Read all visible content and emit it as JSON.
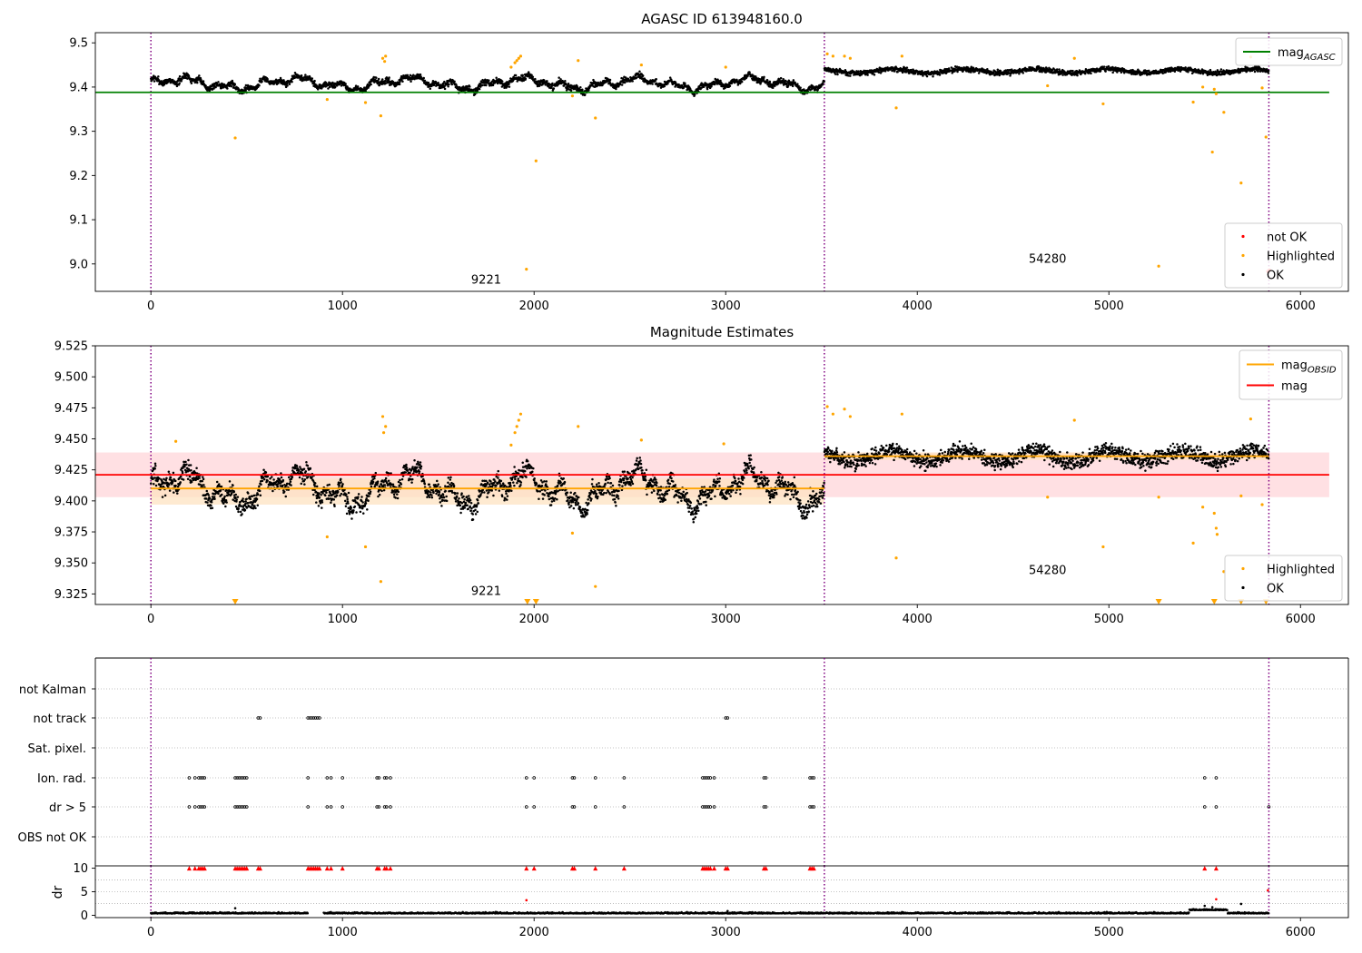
{
  "colors": {
    "ok": "#000000",
    "highlighted": "#ffa500",
    "not_ok": "#ff0000",
    "mag_agasc": "#008000",
    "mag_obsid": "#ffa500",
    "mag": "#ff0000",
    "obs_boundary": "#800080",
    "red_band": "#ffd8dc",
    "orange_band": "#fde3c2"
  },
  "chart_data": [
    {
      "type": "scatter",
      "title": "AGASC ID 613948160.0",
      "xlabel": "",
      "ylabel": "",
      "xlim": [
        -290,
        6250
      ],
      "ylim": [
        8.938,
        9.523
      ],
      "x_ticks": [
        0,
        1000,
        2000,
        3000,
        4000,
        5000,
        6000
      ],
      "y_ticks": [
        9.0,
        9.1,
        9.2,
        9.3,
        9.4,
        9.5
      ],
      "y_tick_labels": [
        "9.0",
        "9.1",
        "9.2",
        "9.3",
        "9.4",
        "9.5"
      ],
      "obs_boundaries": [
        0,
        3515,
        5835
      ],
      "obsid_labels": [
        {
          "text": "9221",
          "x": 1750,
          "y": 8.955
        },
        {
          "text": "54280",
          "x": 4680,
          "y": 9.003
        }
      ],
      "segments": [
        {
          "x_start": 0,
          "x_end": 3515,
          "mag": 9.408,
          "spread": 0.012
        },
        {
          "x_start": 3515,
          "x_end": 5835,
          "mag": 9.436,
          "spread": 0.01
        }
      ],
      "hlines": [
        {
          "name": "mag_AGASC",
          "y": 9.388,
          "x_start": -290,
          "x_end": 6150,
          "color": "#008000"
        }
      ],
      "highlighted": [
        [
          440,
          9.285
        ],
        [
          920,
          9.372
        ],
        [
          1120,
          9.365
        ],
        [
          1200,
          9.335
        ],
        [
          1210,
          9.465
        ],
        [
          1220,
          9.458
        ],
        [
          1225,
          9.47
        ],
        [
          1880,
          9.445
        ],
        [
          1900,
          9.455
        ],
        [
          1910,
          9.46
        ],
        [
          1920,
          9.465
        ],
        [
          1930,
          9.47
        ],
        [
          1960,
          8.988
        ],
        [
          2010,
          9.233
        ],
        [
          2200,
          9.38
        ],
        [
          2230,
          9.46
        ],
        [
          2320,
          9.33
        ],
        [
          2560,
          9.45
        ],
        [
          3000,
          9.445
        ],
        [
          3530,
          9.475
        ],
        [
          3560,
          9.47
        ],
        [
          3620,
          9.47
        ],
        [
          3650,
          9.465
        ],
        [
          3890,
          9.353
        ],
        [
          3920,
          9.47
        ],
        [
          4680,
          9.403
        ],
        [
          4820,
          9.465
        ],
        [
          4970,
          9.362
        ],
        [
          5260,
          8.995
        ],
        [
          5440,
          9.366
        ],
        [
          5490,
          9.4
        ],
        [
          5540,
          9.253
        ],
        [
          5550,
          9.395
        ],
        [
          5560,
          9.385
        ],
        [
          5600,
          9.343
        ],
        [
          5690,
          9.183
        ],
        [
          5740,
          9.468
        ],
        [
          5800,
          9.398
        ],
        [
          5820,
          9.287
        ]
      ],
      "not_ok": [
        [
          5830,
          8.983
        ],
        [
          5838,
          8.986
        ]
      ],
      "legends": [
        {
          "placement": "upper right",
          "entries": [
            {
              "label": "mag_AGASC",
              "type": "line",
              "color": "#008000"
            }
          ]
        },
        {
          "placement": "lower right",
          "entries": [
            {
              "label": "not OK",
              "type": "dot",
              "color": "#ff0000"
            },
            {
              "label": "Highlighted",
              "type": "dot",
              "color": "#ffa500"
            },
            {
              "label": "OK",
              "type": "dot",
              "color": "#000000"
            }
          ]
        }
      ]
    },
    {
      "type": "scatter",
      "title": "Magnitude Estimates",
      "xlabel": "",
      "ylabel": "",
      "xlim": [
        -290,
        6250
      ],
      "ylim": [
        9.3165,
        9.525
      ],
      "x_ticks": [
        0,
        1000,
        2000,
        3000,
        4000,
        5000,
        6000
      ],
      "y_ticks": [
        9.325,
        9.35,
        9.375,
        9.4,
        9.425,
        9.45,
        9.475,
        9.5,
        9.525
      ],
      "y_tick_labels": [
        "9.325",
        "9.350",
        "9.375",
        "9.400",
        "9.425",
        "9.450",
        "9.475",
        "9.500",
        "9.525"
      ],
      "obs_boundaries": [
        0,
        3515,
        5835
      ],
      "obsid_labels": [
        {
          "text": "9221",
          "x": 1750,
          "y": 9.324
        },
        {
          "text": "54280",
          "x": 4680,
          "y": 9.341
        }
      ],
      "segments": [
        {
          "x_start": 0,
          "x_end": 3515,
          "mag": 9.41,
          "spread": 0.013
        },
        {
          "x_start": 3515,
          "x_end": 5835,
          "mag": 9.436,
          "spread": 0.011
        }
      ],
      "hlines": [
        {
          "name": "mag",
          "y": 9.421,
          "x_start": -290,
          "x_end": 6150,
          "color": "#ff0000",
          "band": [
            9.403,
            9.439
          ]
        },
        {
          "name": "mag_OBSID",
          "y": 9.41,
          "x_start": 0,
          "x_end": 3515,
          "color": "#ffa500",
          "band": [
            9.397,
            9.418
          ]
        },
        {
          "name": "mag_OBSID",
          "y": 9.436,
          "x_start": 3515,
          "x_end": 5835,
          "color": "#ffa500",
          "band": [
            9.433,
            9.439
          ]
        }
      ],
      "highlighted": [
        [
          130,
          9.448
        ],
        [
          920,
          9.371
        ],
        [
          1120,
          9.363
        ],
        [
          1200,
          9.335
        ],
        [
          1210,
          9.468
        ],
        [
          1215,
          9.455
        ],
        [
          1225,
          9.46
        ],
        [
          1880,
          9.445
        ],
        [
          1900,
          9.455
        ],
        [
          1910,
          9.46
        ],
        [
          1920,
          9.465
        ],
        [
          1930,
          9.47
        ],
        [
          2200,
          9.374
        ],
        [
          2230,
          9.46
        ],
        [
          2320,
          9.331
        ],
        [
          2560,
          9.449
        ],
        [
          2990,
          9.446
        ],
        [
          3530,
          9.476
        ],
        [
          3560,
          9.47
        ],
        [
          3620,
          9.474
        ],
        [
          3650,
          9.468
        ],
        [
          3890,
          9.354
        ],
        [
          3920,
          9.47
        ],
        [
          4680,
          9.403
        ],
        [
          4820,
          9.465
        ],
        [
          4970,
          9.363
        ],
        [
          5260,
          9.403
        ],
        [
          5440,
          9.366
        ],
        [
          5490,
          9.395
        ],
        [
          5550,
          9.39
        ],
        [
          5560,
          9.378
        ],
        [
          5565,
          9.373
        ],
        [
          5600,
          9.343
        ],
        [
          5690,
          9.404
        ],
        [
          5740,
          9.466
        ],
        [
          5800,
          9.397
        ]
      ],
      "clipped_low": [
        440,
        1965,
        2010,
        5260,
        5550,
        5690,
        5820
      ],
      "legends": [
        {
          "placement": "upper right",
          "entries": [
            {
              "label": "mag_OBSID",
              "type": "line",
              "color": "#ffa500"
            },
            {
              "label": "mag",
              "type": "line",
              "color": "#ff0000"
            }
          ]
        },
        {
          "placement": "lower right",
          "entries": [
            {
              "label": "Highlighted",
              "type": "dot",
              "color": "#ffa500"
            },
            {
              "label": "OK",
              "type": "dot",
              "color": "#000000"
            }
          ]
        }
      ]
    },
    {
      "type": "scatter",
      "title": "",
      "xlabel": "",
      "ylabel": "",
      "xlim": [
        -290,
        6250
      ],
      "categories": [
        "not Kalman",
        "not track",
        "Sat. pixel.",
        "Ion. rad.",
        "dr > 5",
        "OBS not OK"
      ],
      "obs_boundaries": [
        0,
        3515,
        5835
      ],
      "flags": {
        "not Kalman": [],
        "not track": [
          560,
          570,
          820,
          830,
          840,
          850,
          860,
          870,
          880,
          3000,
          3010
        ],
        "Sat. pixel.": [],
        "Ion. rad.": [
          200,
          230,
          250,
          260,
          270,
          280,
          440,
          450,
          460,
          470,
          480,
          490,
          500,
          820,
          920,
          940,
          1000,
          1180,
          1190,
          1220,
          1230,
          1250,
          1960,
          2000,
          2200,
          2210,
          2320,
          2470,
          2880,
          2890,
          2900,
          2910,
          2920,
          2940,
          3200,
          3210,
          3440,
          3450,
          3460,
          5500,
          5560
        ],
        "dr > 5": [
          200,
          230,
          250,
          260,
          270,
          280,
          440,
          450,
          460,
          470,
          480,
          490,
          500,
          820,
          920,
          940,
          1000,
          1180,
          1190,
          1220,
          1230,
          1250,
          1960,
          2000,
          2200,
          2210,
          2320,
          2470,
          2880,
          2890,
          2900,
          2910,
          2920,
          2940,
          3200,
          3210,
          3440,
          3450,
          3460,
          5500,
          5560,
          5835
        ],
        "OBS not OK": []
      }
    },
    {
      "type": "scatter",
      "title": "",
      "xlabel": "",
      "ylabel": "dr",
      "xlim": [
        -290,
        6250
      ],
      "ylim": [
        -0.5,
        10.5
      ],
      "y_ticks": [
        0,
        5,
        10
      ],
      "y_tick_labels": [
        "0",
        "5",
        "10"
      ],
      "x_ticks": [
        0,
        1000,
        2000,
        3000,
        4000,
        5000,
        6000
      ],
      "obs_boundaries": [
        0,
        3515,
        5835
      ],
      "baseline": 0.35,
      "outliers": [
        [
          440,
          1.5
        ],
        [
          1960,
          3.2
        ],
        [
          3010,
          0.9
        ],
        [
          5500,
          2.0
        ],
        [
          5540,
          1.7
        ],
        [
          5560,
          3.4
        ],
        [
          5690,
          2.4
        ],
        [
          5830,
          5.3
        ]
      ],
      "clipped_high": [
        200,
        230,
        250,
        260,
        270,
        280,
        440,
        450,
        460,
        470,
        480,
        490,
        500,
        560,
        570,
        820,
        830,
        840,
        850,
        860,
        870,
        880,
        920,
        940,
        1000,
        1180,
        1190,
        1220,
        1230,
        1250,
        1960,
        2000,
        2200,
        2210,
        2320,
        2470,
        2880,
        2890,
        2900,
        2910,
        2920,
        2940,
        3000,
        3010,
        3200,
        3210,
        3440,
        3450,
        3460,
        5500,
        5560
      ]
    }
  ]
}
